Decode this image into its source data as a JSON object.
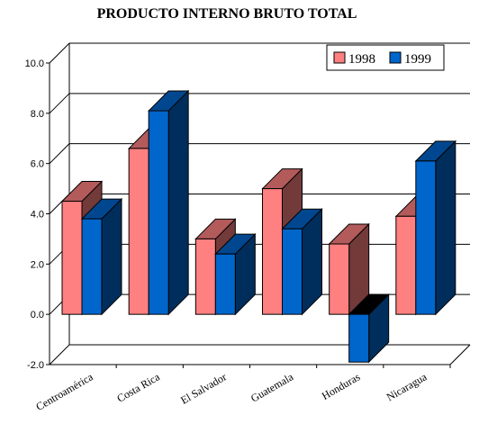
{
  "chart_data": {
    "type": "bar",
    "title": "PRODUCTO INTERNO BRUTO TOTAL",
    "xlabel": "",
    "ylabel": "",
    "categories": [
      "Centroamérica",
      "Costa Rica",
      "El Salvador",
      "Guatemala",
      "Honduras",
      "Nicaragua"
    ],
    "series": [
      {
        "name": "1998",
        "values": [
          4.5,
          6.6,
          3.0,
          5.0,
          2.8,
          3.9
        ],
        "color": "#ff8080"
      },
      {
        "name": "1999",
        "values": [
          3.8,
          8.1,
          2.4,
          3.4,
          -1.9,
          6.1
        ],
        "color": "#0066cc"
      }
    ],
    "ylim": [
      -2.0,
      10.0
    ],
    "yticks": [
      "-2.0",
      "0.0",
      "2.0",
      "4.0",
      "6.0",
      "8.0",
      "10.0"
    ],
    "grid": true,
    "legend_position": "top-right",
    "style": "3d-clustered-column"
  }
}
